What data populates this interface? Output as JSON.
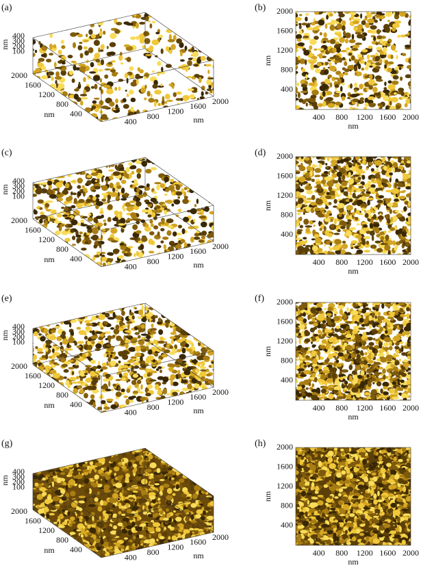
{
  "panels": [
    {
      "label": "(a)",
      "view": "3d",
      "z_label": "nm",
      "z_ticks": [
        100,
        200,
        300,
        400
      ],
      "y_label": "nm",
      "y_ticks": [
        400,
        800,
        1200,
        1600,
        2000
      ],
      "x_label": "nm",
      "x_ticks": [
        400,
        800,
        1200,
        1600,
        2000
      ]
    },
    {
      "label": "(b)",
      "view": "top",
      "y_label": "nm",
      "y_ticks": [
        400,
        800,
        1200,
        1600,
        2000
      ],
      "x_label": "nm",
      "x_ticks": [
        400,
        800,
        1200,
        1600,
        2000
      ]
    },
    {
      "label": "(c)",
      "view": "3d",
      "z_label": "nm",
      "z_ticks": [
        100,
        200,
        300,
        400
      ],
      "y_label": "nm",
      "y_ticks": [
        400,
        800,
        1200,
        1600,
        2000
      ],
      "x_label": "nm",
      "x_ticks": [
        400,
        800,
        1200,
        1600,
        2000
      ]
    },
    {
      "label": "(d)",
      "view": "top",
      "y_label": "nm",
      "y_ticks": [
        400,
        800,
        1200,
        1600,
        2000
      ],
      "x_label": "nm",
      "x_ticks": [
        400,
        800,
        1200,
        1600,
        2000
      ]
    },
    {
      "label": "(e)",
      "view": "3d",
      "z_label": "nm",
      "z_ticks": [
        100,
        200,
        300,
        400
      ],
      "y_label": "nm",
      "y_ticks": [
        400,
        800,
        1200,
        1600,
        2000
      ],
      "x_label": "nm",
      "x_ticks": [
        400,
        800,
        1200,
        1600,
        2000
      ]
    },
    {
      "label": "(f)",
      "view": "top",
      "y_label": "nm",
      "y_ticks": [
        400,
        800,
        1200,
        1600,
        2000
      ],
      "x_label": "nm",
      "x_ticks": [
        400,
        800,
        1200,
        1600,
        2000
      ]
    },
    {
      "label": "(g)",
      "view": "3d",
      "z_label": "nm",
      "z_ticks": [
        100,
        200,
        300,
        400
      ],
      "y_label": "nm",
      "y_ticks": [
        400,
        800,
        1200,
        1600,
        2000
      ],
      "x_label": "nm",
      "x_ticks": [
        400,
        800,
        1200,
        1600,
        2000
      ]
    },
    {
      "label": "(h)",
      "view": "top",
      "y_label": "nm",
      "y_ticks": [
        400,
        800,
        1200,
        1600,
        2000
      ],
      "x_label": "nm",
      "x_ticks": [
        400,
        800,
        1200,
        1600,
        2000
      ]
    }
  ]
}
